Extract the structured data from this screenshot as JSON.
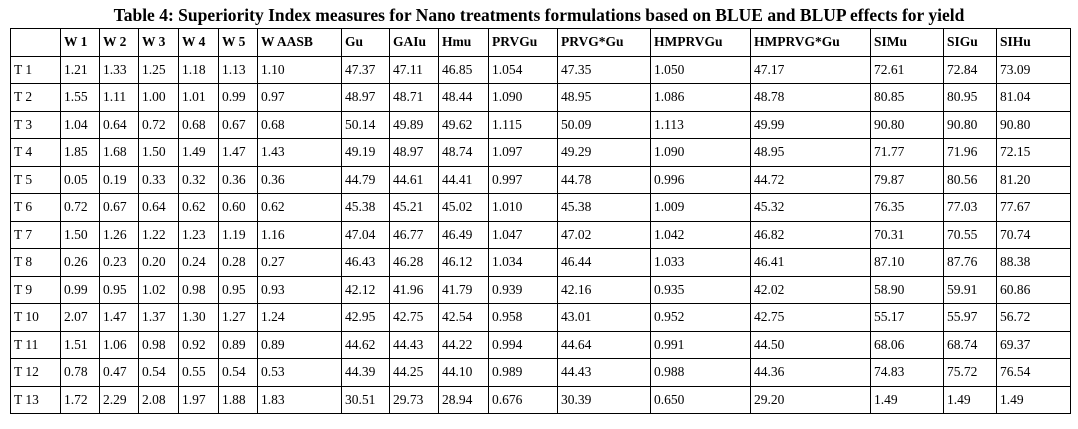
{
  "title": "Table 4: Superiority Index measures for Nano treatments formulations based on BLUE and BLUP effects for yield",
  "table": {
    "headers": [
      "W 1",
      "W 2",
      "W 3",
      "W 4",
      "W 5",
      "W AASB",
      "Gu",
      "GAIu",
      "Hmu",
      "PRVGu",
      "PRVG*Gu",
      "HMPRVGu",
      "HMPRVG*Gu",
      "SIMu",
      "SIGu",
      "SIHu"
    ],
    "rows": [
      [
        "T 1",
        "1.21",
        "1.33",
        "1.25",
        "1.18",
        "1.13",
        "1.10",
        "47.37",
        "47.11",
        "46.85",
        "1.054",
        "47.35",
        "1.050",
        "47.17",
        "72.61",
        "72.84",
        "73.09"
      ],
      [
        "T 2",
        "1.55",
        "1.11",
        "1.00",
        "1.01",
        "0.99",
        "0.97",
        "48.97",
        "48.71",
        "48.44",
        "1.090",
        "48.95",
        "1.086",
        "48.78",
        "80.85",
        "80.95",
        "81.04"
      ],
      [
        "T 3",
        "1.04",
        "0.64",
        "0.72",
        "0.68",
        "0.67",
        "0.68",
        "50.14",
        "49.89",
        "49.62",
        "1.115",
        "50.09",
        "1.113",
        "49.99",
        "90.80",
        "90.80",
        "90.80"
      ],
      [
        "T 4",
        "1.85",
        "1.68",
        "1.50",
        "1.49",
        "1.47",
        "1.43",
        "49.19",
        "48.97",
        "48.74",
        "1.097",
        "49.29",
        "1.090",
        "48.95",
        "71.77",
        "71.96",
        "72.15"
      ],
      [
        "T 5",
        "0.05",
        "0.19",
        "0.33",
        "0.32",
        "0.36",
        "0.36",
        "44.79",
        "44.61",
        "44.41",
        "0.997",
        "44.78",
        "0.996",
        "44.72",
        "79.87",
        "80.56",
        "81.20"
      ],
      [
        "T 6",
        "0.72",
        "0.67",
        "0.64",
        "0.62",
        "0.60",
        "0.62",
        "45.38",
        "45.21",
        "45.02",
        "1.010",
        "45.38",
        "1.009",
        "45.32",
        "76.35",
        "77.03",
        "77.67"
      ],
      [
        "T 7",
        "1.50",
        "1.26",
        "1.22",
        "1.23",
        "1.19",
        "1.16",
        "47.04",
        "46.77",
        "46.49",
        "1.047",
        "47.02",
        "1.042",
        "46.82",
        "70.31",
        "70.55",
        "70.74"
      ],
      [
        "T 8",
        "0.26",
        "0.23",
        "0.20",
        "0.24",
        "0.28",
        "0.27",
        "46.43",
        "46.28",
        "46.12",
        "1.034",
        "46.44",
        "1.033",
        "46.41",
        "87.10",
        "87.76",
        "88.38"
      ],
      [
        "T 9",
        "0.99",
        "0.95",
        "1.02",
        "0.98",
        "0.95",
        "0.93",
        "42.12",
        "41.96",
        "41.79",
        "0.939",
        "42.16",
        "0.935",
        "42.02",
        "58.90",
        "59.91",
        "60.86"
      ],
      [
        "T 10",
        "2.07",
        "1.47",
        "1.37",
        "1.30",
        "1.27",
        "1.24",
        "42.95",
        "42.75",
        "42.54",
        "0.958",
        "43.01",
        "0.952",
        "42.75",
        "55.17",
        "55.97",
        "56.72"
      ],
      [
        "T 11",
        "1.51",
        "1.06",
        "0.98",
        "0.92",
        "0.89",
        "0.89",
        "44.62",
        "44.43",
        "44.22",
        "0.994",
        "44.64",
        "0.991",
        "44.50",
        "68.06",
        "68.74",
        "69.37"
      ],
      [
        "T 12",
        "0.78",
        "0.47",
        "0.54",
        "0.55",
        "0.54",
        "0.53",
        "44.39",
        "44.25",
        "44.10",
        "0.989",
        "44.43",
        "0.988",
        "44.36",
        "74.83",
        "75.72",
        "76.54"
      ],
      [
        "T 13",
        "1.72",
        "2.29",
        "2.08",
        "1.97",
        "1.88",
        "1.83",
        "30.51",
        "29.73",
        "28.94",
        "0.676",
        "30.39",
        "0.650",
        "29.20",
        "1.49",
        "1.49",
        "1.49"
      ]
    ]
  }
}
